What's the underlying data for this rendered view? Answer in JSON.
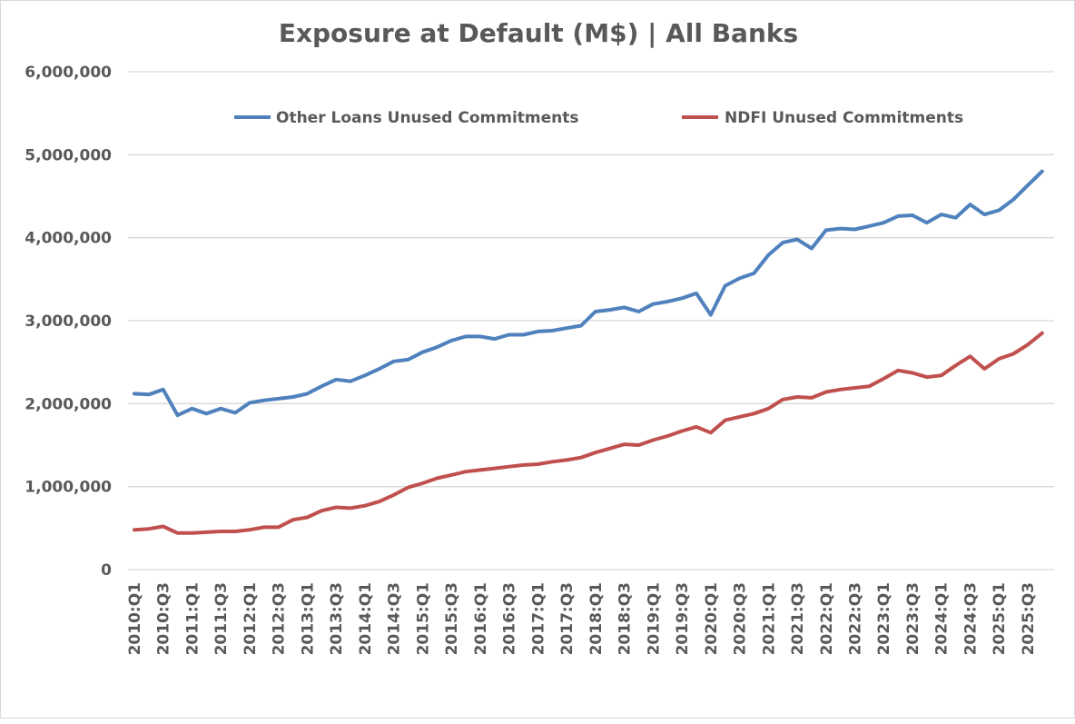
{
  "chart_data": {
    "type": "line",
    "title": "Exposure at Default (M$) | All Banks",
    "xlabel": "",
    "ylabel": "",
    "ylim": [
      0,
      6000000
    ],
    "y_ticks": [
      0,
      1000000,
      2000000,
      3000000,
      4000000,
      5000000,
      6000000
    ],
    "y_tick_labels": [
      "0",
      "1,000,000",
      "2,000,000",
      "3,000,000",
      "4,000,000",
      "5,000,000",
      "6,000,000"
    ],
    "grid": "horizontal",
    "legend_position": "top",
    "categories": [
      "2010:Q1",
      "2010:Q2",
      "2010:Q3",
      "2010:Q4",
      "2011:Q1",
      "2011:Q2",
      "2011:Q3",
      "2011:Q4",
      "2012:Q1",
      "2012:Q2",
      "2012:Q3",
      "2012:Q4",
      "2013:Q1",
      "2013:Q2",
      "2013:Q3",
      "2013:Q4",
      "2014:Q1",
      "2014:Q2",
      "2014:Q3",
      "2014:Q4",
      "2015:Q1",
      "2015:Q2",
      "2015:Q3",
      "2015:Q4",
      "2016:Q1",
      "2016:Q2",
      "2016:Q3",
      "2016:Q4",
      "2017:Q1",
      "2017:Q2",
      "2017:Q3",
      "2017:Q4",
      "2018:Q1",
      "2018:Q2",
      "2018:Q3",
      "2018:Q4",
      "2019:Q1",
      "2019:Q2",
      "2019:Q3",
      "2019:Q4",
      "2020:Q1",
      "2020:Q2",
      "2020:Q3",
      "2020:Q4",
      "2021:Q1",
      "2021:Q2",
      "2021:Q3",
      "2021:Q4",
      "2022:Q1",
      "2022:Q2",
      "2022:Q3",
      "2022:Q4",
      "2023:Q1",
      "2023:Q2",
      "2023:Q3",
      "2023:Q4",
      "2024:Q1",
      "2024:Q2",
      "2024:Q3",
      "2024:Q4",
      "2025:Q1",
      "2025:Q2",
      "2025:Q3",
      "2025:Q4"
    ],
    "series": [
      {
        "name": "Other Loans Unused Commitments",
        "color": "#4f81bd",
        "values": [
          2120000,
          2110000,
          2170000,
          1860000,
          1940000,
          1880000,
          1940000,
          1890000,
          2010000,
          2040000,
          2060000,
          2080000,
          2120000,
          2210000,
          2290000,
          2270000,
          2340000,
          2420000,
          2510000,
          2530000,
          2620000,
          2680000,
          2760000,
          2810000,
          2810000,
          2780000,
          2830000,
          2830000,
          2870000,
          2880000,
          2910000,
          2940000,
          3110000,
          3130000,
          3160000,
          3110000,
          3200000,
          3230000,
          3270000,
          3330000,
          3070000,
          3420000,
          3510000,
          3570000,
          3790000,
          3940000,
          3980000,
          3870000,
          4090000,
          4110000,
          4100000,
          4140000,
          4180000,
          4260000,
          4270000,
          4180000,
          4280000,
          4240000,
          4400000,
          4280000,
          4330000,
          4460000,
          4630000,
          4800000
        ]
      },
      {
        "name": "NDFI Unused Commitments",
        "color": "#c0504d",
        "values": [
          480000,
          490000,
          520000,
          440000,
          440000,
          450000,
          460000,
          460000,
          480000,
          510000,
          510000,
          600000,
          630000,
          710000,
          750000,
          740000,
          770000,
          820000,
          900000,
          990000,
          1040000,
          1100000,
          1140000,
          1180000,
          1200000,
          1220000,
          1240000,
          1260000,
          1270000,
          1300000,
          1320000,
          1350000,
          1410000,
          1460000,
          1510000,
          1500000,
          1560000,
          1610000,
          1670000,
          1720000,
          1650000,
          1800000,
          1840000,
          1880000,
          1940000,
          2050000,
          2080000,
          2070000,
          2140000,
          2170000,
          2190000,
          2210000,
          2300000,
          2400000,
          2370000,
          2320000,
          2340000,
          2460000,
          2570000,
          2420000,
          2540000,
          2600000,
          2710000,
          2850000
        ]
      }
    ]
  }
}
